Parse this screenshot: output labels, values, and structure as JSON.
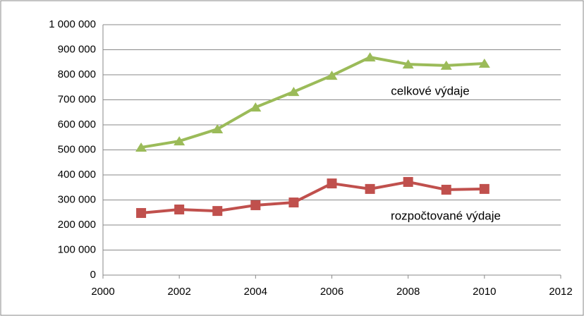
{
  "chart_data": {
    "type": "line",
    "x": [
      2001,
      2002,
      2003,
      2004,
      2005,
      2006,
      2007,
      2008,
      2009,
      2010
    ],
    "series": [
      {
        "name": "celkové výdaje",
        "color": "#9bbb59",
        "marker": "triangle",
        "values": [
          510000,
          535000,
          583000,
          670000,
          732000,
          797000,
          870000,
          842000,
          837000,
          845000
        ]
      },
      {
        "name": "rozpočtované výdaje",
        "color": "#c0504d",
        "marker": "square",
        "values": [
          248000,
          262000,
          256000,
          279000,
          290000,
          366000,
          344000,
          372000,
          341000,
          344000
        ]
      }
    ],
    "xlim": [
      2000,
      2012
    ],
    "xticks": [
      2000,
      2002,
      2004,
      2006,
      2008,
      2010,
      2012
    ],
    "ylim": [
      0,
      1000000
    ],
    "yticks": [
      0,
      {
        "value": 100000,
        "label": "100 000"
      },
      {
        "value": 200000,
        "label": "200 000"
      },
      {
        "value": 300000,
        "label": "300 000"
      },
      {
        "value": 400000,
        "label": "400 000"
      },
      {
        "value": 500000,
        "label": "500 000"
      },
      {
        "value": 600000,
        "label": "600 000"
      },
      {
        "value": 700000,
        "label": "700 000"
      },
      {
        "value": 800000,
        "label": "800 000"
      },
      {
        "value": 900000,
        "label": "900 000"
      },
      {
        "value": 1000000,
        "label": "1 000 000"
      }
    ],
    "grid": true
  }
}
